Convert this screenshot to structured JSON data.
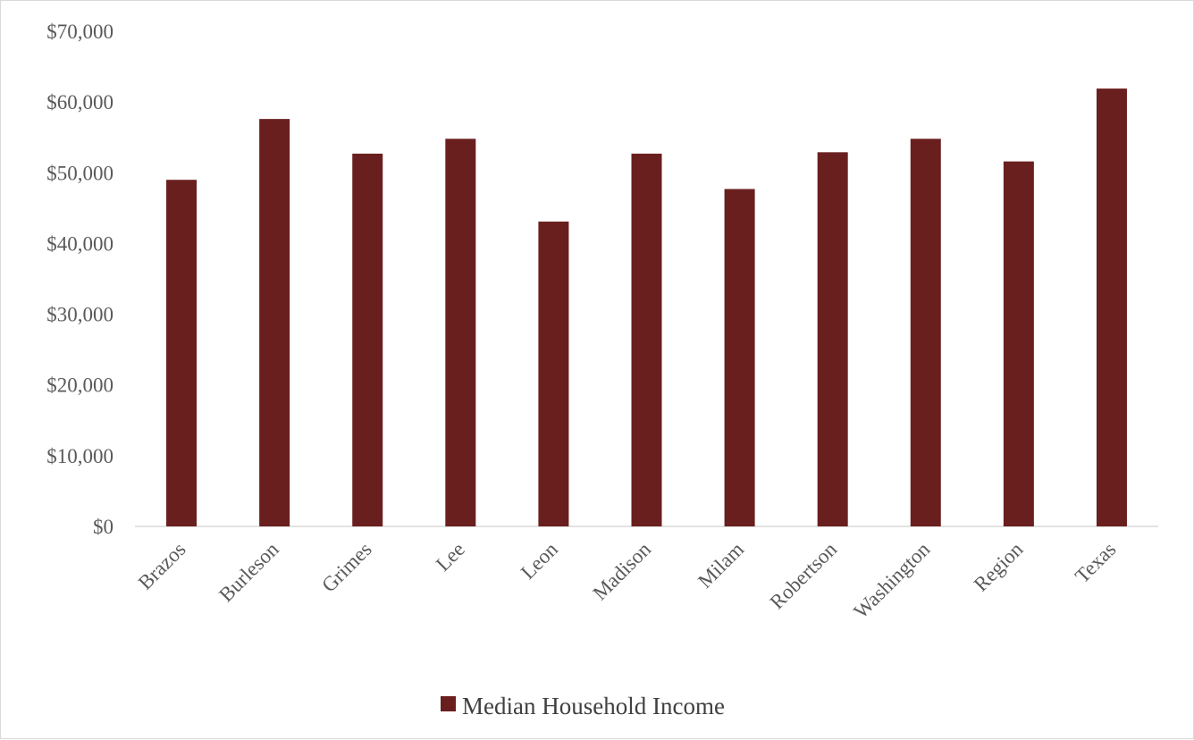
{
  "chart_data": {
    "type": "bar",
    "categories": [
      "Brazos",
      "Burleson",
      "Grimes",
      "Lee",
      "Leon",
      "Madison",
      "Milam",
      "Robertson",
      "Washington",
      "Region",
      "Texas"
    ],
    "series": [
      {
        "name": "Median Household Income",
        "color": "#6a1f1f",
        "values": [
          49000,
          57600,
          52700,
          54800,
          43100,
          52700,
          47700,
          52900,
          54800,
          51600,
          61900
        ]
      }
    ],
    "ylim": [
      0,
      70000
    ],
    "yticks": [
      0,
      10000,
      20000,
      30000,
      40000,
      50000,
      60000,
      70000
    ],
    "ytick_labels": [
      "$0",
      "$10,000",
      "$20,000",
      "$30,000",
      "$40,000",
      "$50,000",
      "$60,000",
      "$70,000"
    ],
    "grid": false,
    "legend_position": "bottom",
    "x_label_rotation": "45-degree diagonal"
  }
}
